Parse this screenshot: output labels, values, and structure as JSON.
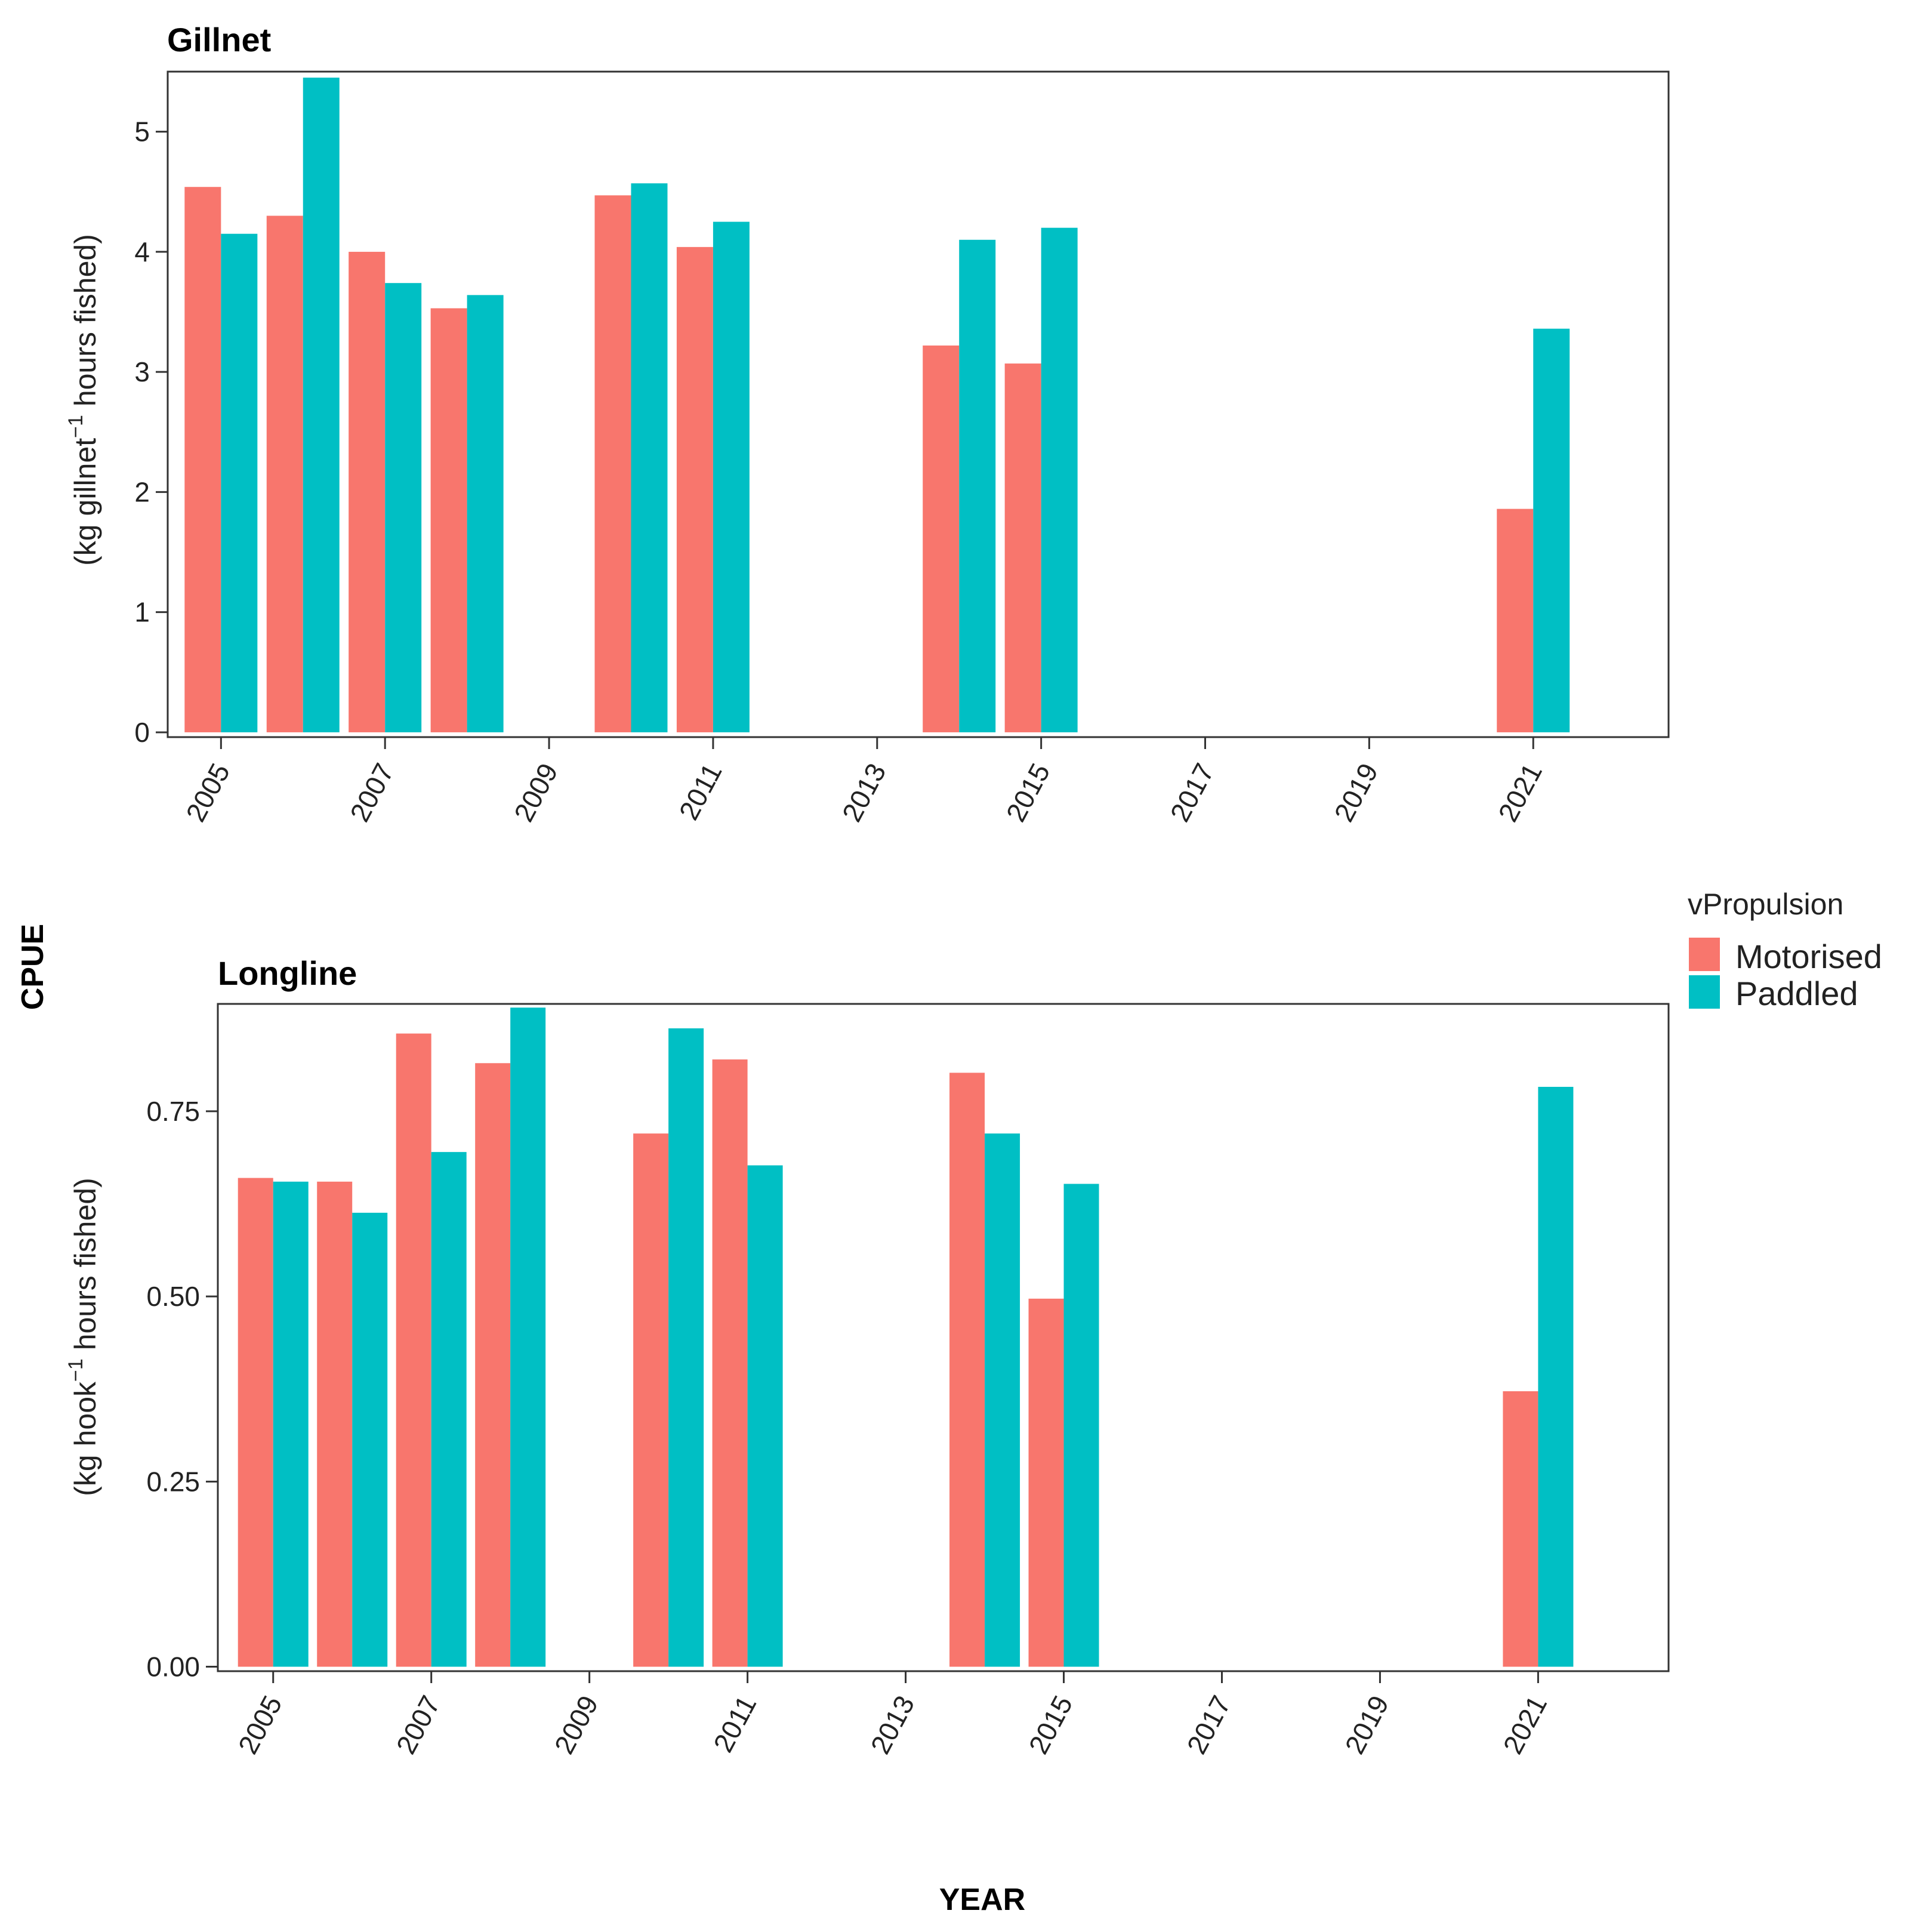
{
  "shared_labels": {
    "y_title": "CPUE",
    "x_title": "YEAR",
    "legend_title": "vPropulsion"
  },
  "colors": {
    "Motorised": "#F8766D",
    "Paddled": "#00BFC4"
  },
  "chart_data": [
    {
      "type": "bar",
      "title": "Gillnet",
      "ylabel_pre": "(kg gillnet",
      "ylabel_sup": "−1",
      "ylabel_post": " hours fished)",
      "xlabel": "YEAR",
      "xlim": [
        2004.35,
        2022.65
      ],
      "ylim": [
        -0.04,
        5.5
      ],
      "x_ticks": [
        2005,
        2007,
        2009,
        2011,
        2013,
        2015,
        2017,
        2019,
        2021
      ],
      "y_ticks": [
        0,
        1,
        2,
        3,
        4,
        5
      ],
      "y_tick_labels": [
        "0",
        "1",
        "2",
        "3",
        "4",
        "5"
      ],
      "x": [
        2005,
        2006,
        2007,
        2008,
        2010,
        2011,
        2014,
        2015,
        2021
      ],
      "series": [
        {
          "name": "Motorised",
          "values": [
            4.54,
            4.3,
            4.0,
            3.53,
            4.47,
            4.04,
            3.22,
            3.07,
            1.86
          ]
        },
        {
          "name": "Paddled",
          "values": [
            4.15,
            5.45,
            3.74,
            3.64,
            4.57,
            4.25,
            4.1,
            4.2,
            3.36
          ]
        }
      ],
      "legend": [
        "Motorised",
        "Paddled"
      ]
    },
    {
      "type": "bar",
      "title": "Longline",
      "ylabel_pre": "(kg hook",
      "ylabel_sup": "−1",
      "ylabel_post": " hours fished)",
      "xlabel": "YEAR",
      "xlim": [
        2004.3,
        2022.65
      ],
      "ylim": [
        -0.006,
        0.895
      ],
      "x_ticks": [
        2005,
        2007,
        2009,
        2011,
        2013,
        2015,
        2017,
        2019,
        2021
      ],
      "y_ticks": [
        0,
        0.25,
        0.5,
        0.75
      ],
      "y_tick_labels": [
        "0.00",
        "0.25",
        "0.50",
        "0.75"
      ],
      "x": [
        2005,
        2006,
        2007,
        2008,
        2010,
        2011,
        2014,
        2015,
        2021
      ],
      "series": [
        {
          "name": "Motorised",
          "values": [
            0.66,
            0.655,
            0.855,
            0.815,
            0.72,
            0.82,
            0.802,
            0.497,
            0.372
          ]
        },
        {
          "name": "Paddled",
          "values": [
            0.655,
            0.613,
            0.695,
            0.89,
            0.862,
            0.677,
            0.72,
            0.652,
            0.783
          ]
        }
      ],
      "legend": [
        "Motorised",
        "Paddled"
      ]
    }
  ]
}
